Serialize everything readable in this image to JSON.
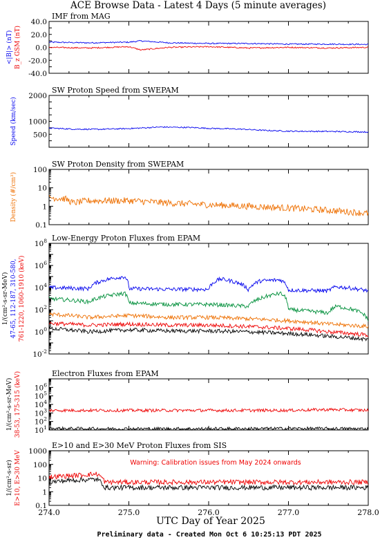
{
  "title": "ACE Browse Data - Latest 4 Days (5 minute averages)",
  "x_axis": {
    "label": "UTC Day of Year 2025",
    "ticks": [
      "274.0",
      "275.0",
      "276.0",
      "277.0",
      "278.0"
    ],
    "range": [
      274.0,
      278.0
    ]
  },
  "footer": "Preliminary data - Created Mon Oct  6 10:25:13 PDT 2025",
  "colors": {
    "blue": "#0000ee",
    "red": "#ee0000",
    "orange": "#ee6f00",
    "green": "#008f3a",
    "black": "#000000"
  },
  "chart_data": [
    {
      "type": "line",
      "title": "IMF from MAG",
      "scale": "linear",
      "ylim": [
        -40,
        40
      ],
      "y_ticks": [
        "40.0",
        "20.0",
        "0.0",
        "-20.0",
        "-40.0"
      ],
      "ylabel_lines": [
        {
          "text": "<|B|> (nT)",
          "color": "#0000ee"
        },
        {
          "text": "B_z GSM (nT)",
          "color": "#ee0000"
        }
      ],
      "series": [
        {
          "name": "<|B|>",
          "color": "#0000ee",
          "x": [
            274.0,
            274.5,
            275.0,
            275.15,
            275.5,
            276.0,
            276.5,
            277.0,
            277.5,
            278.0
          ],
          "y": [
            8,
            7,
            8,
            10,
            7,
            6,
            6,
            5,
            5,
            4.5
          ]
        },
        {
          "name": "Bz GSM",
          "color": "#ee0000",
          "x": [
            274.0,
            274.5,
            275.0,
            275.15,
            275.5,
            276.0,
            276.5,
            277.0,
            277.5,
            278.0
          ],
          "y": [
            0,
            -1,
            1,
            -4,
            0,
            1,
            -1,
            0,
            -1,
            0
          ]
        }
      ]
    },
    {
      "type": "line",
      "title": "SW Proton Speed from SWEPAM",
      "scale": "linear",
      "ylim": [
        0,
        2000
      ],
      "y_ticks": [
        "2000",
        "1000",
        "500"
      ],
      "ylabel_lines": [
        {
          "text": "Speed (km/sec)",
          "color": "#0000ee"
        }
      ],
      "series": [
        {
          "name": "Speed",
          "color": "#0000ee",
          "x": [
            274.0,
            274.3,
            274.6,
            275.0,
            275.4,
            275.8,
            276.0,
            276.4,
            276.7,
            277.0,
            277.5,
            278.0
          ],
          "y": [
            740,
            700,
            690,
            720,
            780,
            760,
            730,
            700,
            650,
            620,
            610,
            590
          ]
        }
      ]
    },
    {
      "type": "line",
      "title": "SW Proton Density from SWEPAM",
      "scale": "log",
      "ylim": [
        0.1,
        100
      ],
      "y_ticks": [
        "100",
        "10",
        "1",
        "0.1"
      ],
      "ylabel_lines": [
        {
          "text": "Density (#/cm³)",
          "color": "#ee6f00"
        }
      ],
      "series": [
        {
          "name": "Density",
          "color": "#ee6f00",
          "x": [
            274.0,
            274.2,
            274.3,
            274.5,
            275.0,
            275.5,
            276.0,
            276.5,
            277.0,
            277.5,
            278.0
          ],
          "y": [
            3,
            2.5,
            1.5,
            2,
            2,
            1.5,
            1.2,
            1,
            0.8,
            0.6,
            0.4
          ]
        }
      ]
    },
    {
      "type": "line",
      "title": "Low-Energy Proton Fluxes from EPAM",
      "scale": "log",
      "ylim": [
        0.01,
        100000000
      ],
      "y_ticks": [
        "10^8",
        "10^6",
        "10^4",
        "10^2",
        "10^0",
        "10^-2"
      ],
      "ylabel_lines": [
        {
          "text": "1/(cm²-s-sr-MeV)",
          "color": "#000000"
        },
        {
          "text": "47-65, 112-187, 310-580,",
          "color": "#0000ee"
        },
        {
          "text": "761-1220, 1060-1910 (keV)",
          "color": "#ee0000"
        }
      ],
      "series": [
        {
          "name": "47-65",
          "color": "#0000ee",
          "x": [
            274.0,
            274.5,
            274.95,
            275.0,
            275.5,
            276.0,
            276.15,
            276.5,
            276.65,
            276.9,
            277.0,
            277.5,
            277.6,
            278.0
          ],
          "y": [
            10000,
            8000,
            100000,
            8000,
            7000,
            7000,
            60000,
            6000,
            40000,
            50000,
            6000,
            5000,
            12000,
            5000
          ]
        },
        {
          "name": "112-187",
          "color": "#008f3a",
          "x": [
            274.0,
            274.5,
            274.95,
            275.0,
            275.5,
            276.0,
            276.5,
            276.65,
            276.9,
            277.0,
            277.5,
            277.6,
            278.0
          ],
          "y": [
            1000,
            500,
            3000,
            400,
            300,
            300,
            200,
            1000,
            3000,
            100,
            50,
            200,
            10
          ]
        },
        {
          "name": "310-580",
          "color": "#ee6f00",
          "x": [
            274.0,
            274.5,
            275.0,
            275.5,
            276.0,
            276.5,
            277.0,
            277.5,
            278.0
          ],
          "y": [
            40,
            20,
            30,
            20,
            20,
            15,
            10,
            5,
            3
          ]
        },
        {
          "name": "761-1220",
          "color": "#ee0000",
          "x": [
            274.0,
            274.5,
            275.0,
            275.5,
            276.0,
            276.5,
            277.0,
            277.5,
            278.0
          ],
          "y": [
            6,
            4,
            5,
            4,
            4,
            3,
            2,
            1,
            0.5
          ]
        },
        {
          "name": "1060-1910",
          "color": "#000000",
          "x": [
            274.0,
            274.5,
            275.0,
            275.5,
            276.0,
            276.5,
            277.0,
            277.5,
            278.0
          ],
          "y": [
            2,
            1,
            1.5,
            1.2,
            1.2,
            1,
            0.7,
            0.4,
            0.2
          ]
        }
      ]
    },
    {
      "type": "line",
      "title": "Electron Fluxes from EPAM",
      "scale": "log",
      "ylim": [
        10,
        10000000
      ],
      "y_ticks": [
        "10^6",
        "10^5",
        "10^4",
        "10^3",
        "10^2",
        "10^1"
      ],
      "ylabel_lines": [
        {
          "text": "1/(cm²-s-sr-MeV)",
          "color": "#000000"
        },
        {
          "text": "38-53, 175-315 (keV)",
          "color": "#ee0000"
        }
      ],
      "series": [
        {
          "name": "38-53",
          "color": "#ee0000",
          "x": [
            274.0,
            275.0,
            276.0,
            277.0,
            277.5,
            278.0
          ],
          "y": [
            2000,
            2000,
            2000,
            2000,
            2500,
            2000
          ]
        },
        {
          "name": "175-315",
          "color": "#000000",
          "x": [
            274.0,
            275.0,
            276.0,
            277.0,
            278.0
          ],
          "y": [
            15,
            14,
            14,
            15,
            14
          ]
        }
      ]
    },
    {
      "type": "line",
      "title": "E>10 and E>30 MeV Proton Fluxes from SIS",
      "scale": "log",
      "ylim": [
        0.1,
        1000
      ],
      "y_ticks": [
        "1000",
        "100",
        "10",
        "1",
        "0.1"
      ],
      "ylabel_lines": [
        {
          "text": "1/(cm²-s-sr)",
          "color": "#000000"
        },
        {
          "text": "E>10, E>30 MeV",
          "color": "#ee0000"
        }
      ],
      "annotation": "Warning: Calibration issues from May 2024 onwards",
      "series": [
        {
          "name": "E>10",
          "color": "#ee0000",
          "x": [
            274.0,
            274.3,
            274.6,
            274.7,
            275.0,
            276.0,
            277.0,
            278.0
          ],
          "y": [
            12,
            15,
            20,
            5,
            5,
            5,
            5,
            5
          ]
        },
        {
          "name": "E>30",
          "color": "#000000",
          "x": [
            274.0,
            274.3,
            274.6,
            274.7,
            275.0,
            276.0,
            277.0,
            278.0
          ],
          "y": [
            5,
            7,
            8,
            2,
            2,
            2,
            2,
            2
          ]
        }
      ]
    }
  ]
}
